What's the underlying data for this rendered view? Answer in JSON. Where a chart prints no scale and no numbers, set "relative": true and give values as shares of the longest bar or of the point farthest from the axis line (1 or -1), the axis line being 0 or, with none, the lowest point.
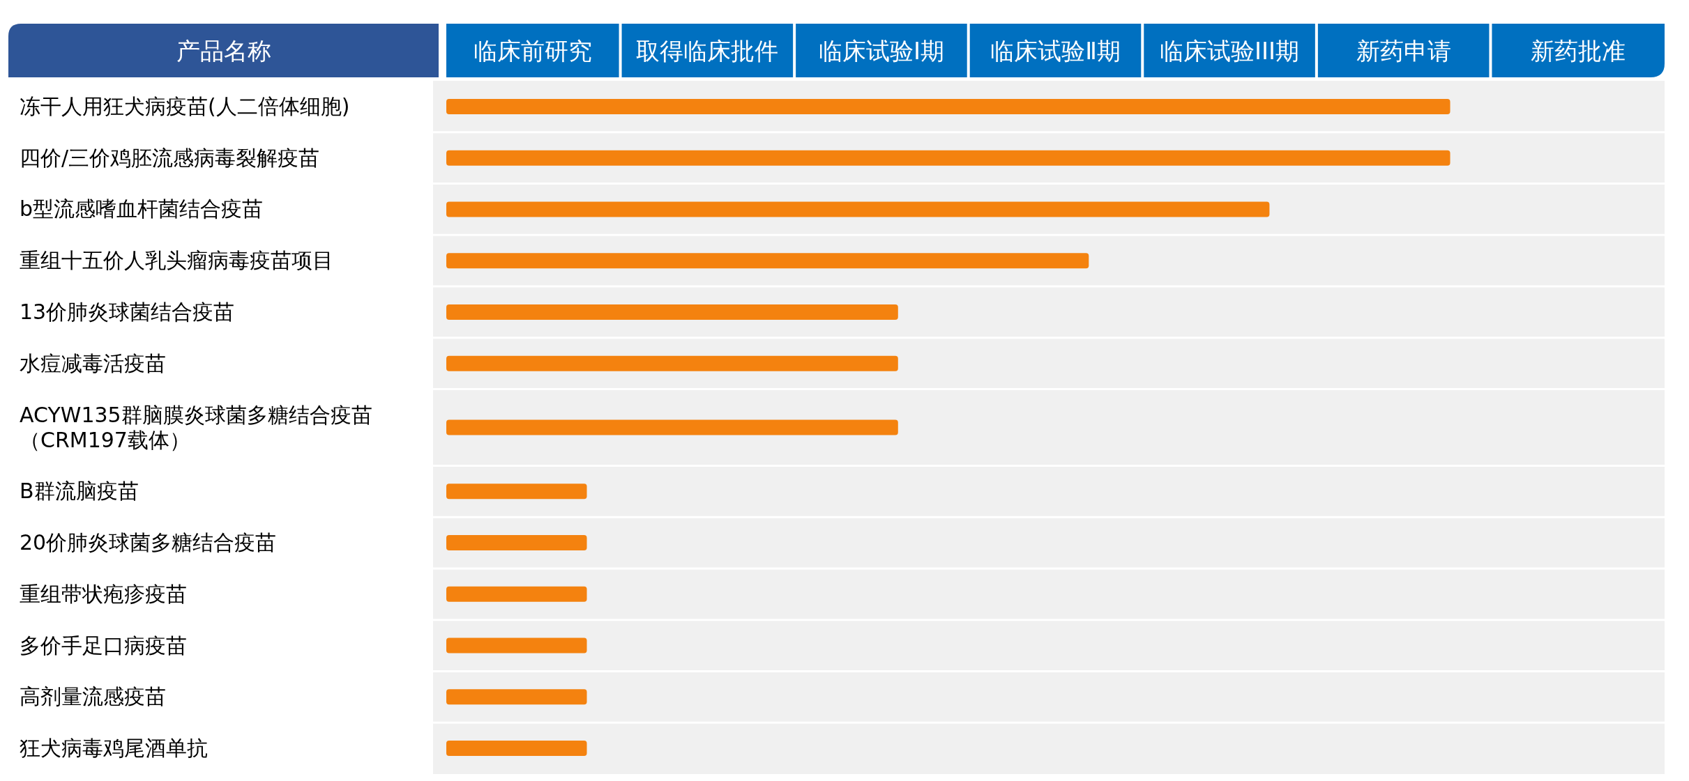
{
  "chart_data": {
    "type": "bar",
    "orientation": "horizontal",
    "relative": true,
    "ylabel": "产品名称",
    "annotations": [
      "临床前研究",
      "取得临床批件",
      "临床试验Ⅰ期",
      "临床试验Ⅱ期",
      "临床试验III期",
      "新药申请",
      "新药批准"
    ],
    "categories": [
      "冻干人用狂犬病疫苗(人二倍体细胞)",
      "四价/三价鸡胚流感病毒裂解疫苗",
      "b型流感嗜血杆菌结合疫苗",
      "重组十五价人乳头瘤病毒疫苗项目",
      "13价肺炎球菌结合疫苗",
      "水痘减毒活疫苗",
      "ACYW135群脑膜炎球菌多糖结合疫苗（CRM197载体）",
      "B群流脑疫苗",
      "20价肺炎球菌多糖结合疫苗",
      "重组带状疱疹疫苗",
      "多价手足口病疫苗",
      "高剂量流感疫苗",
      "狂犬病毒鸡尾酒单抗"
    ],
    "values": [
      1,
      1,
      0.82,
      0.64,
      0.45,
      0.45,
      0.45,
      0.14,
      0.14,
      0.14,
      0.14,
      0.14,
      0.14
    ],
    "color": "#f4820f"
  }
}
